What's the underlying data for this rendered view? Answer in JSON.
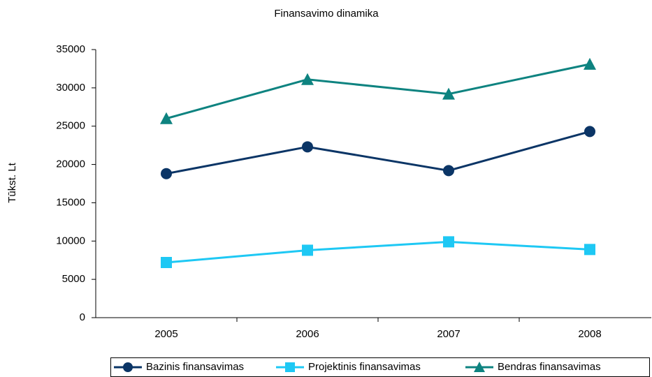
{
  "chart_data": {
    "type": "line",
    "title": "Finansavimo dinamika",
    "y_label": "Tūkst. Lt",
    "categories": [
      "2005",
      "2006",
      "2007",
      "2008"
    ],
    "series": [
      {
        "name": "Bazinis finansavimas",
        "color": "#0b3566",
        "marker": "circle",
        "values": [
          18800,
          22300,
          19200,
          24300
        ]
      },
      {
        "name": "Projektinis finansavimas",
        "color": "#1ec8f4",
        "marker": "square",
        "values": [
          7200,
          8800,
          9900,
          8900
        ]
      },
      {
        "name": "Bendras finansavimas",
        "color": "#0e8380",
        "marker": "triangle",
        "values": [
          26000,
          31100,
          29200,
          33100
        ]
      }
    ],
    "ylim": [
      0,
      35000
    ],
    "yticks": [
      0,
      5000,
      10000,
      15000,
      20000,
      25000,
      30000,
      35000
    ],
    "grid": false,
    "legend": "bottom"
  }
}
